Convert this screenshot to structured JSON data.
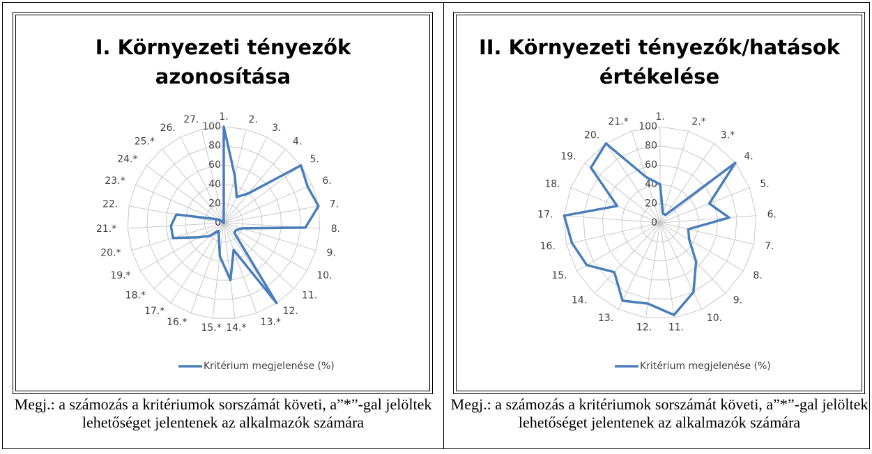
{
  "chart_data": [
    {
      "type": "radar",
      "title": [
        "I. Környezeti tényezők",
        "azonosítása"
      ],
      "categories": [
        "1.",
        "2.",
        "3.",
        "4.",
        "5.",
        "6.",
        "7.",
        "8.",
        "9.",
        "10.",
        "11.",
        "12.",
        "13.*",
        "14.*",
        "15.*",
        "16.*",
        "17.*",
        "18.*",
        "19.*",
        "20.*",
        "21.*",
        "22.",
        "23.*",
        "24.*",
        "25.*",
        "26.",
        "27."
      ],
      "series": [
        {
          "name": "Kritérium megjelenése (%)",
          "color": "#4a7ebb",
          "values": [
            100,
            50,
            30,
            40,
            100,
            95,
            100,
            85,
            20,
            15,
            15,
            100,
            30,
            60,
            35,
            15,
            10,
            20,
            30,
            55,
            55,
            50,
            10,
            5,
            0,
            0,
            0
          ]
        }
      ],
      "ylim": [
        0,
        100
      ],
      "yticks": [
        0,
        20,
        40,
        60,
        80,
        100
      ],
      "grid": true,
      "legend": "bottom"
    },
    {
      "type": "radar",
      "title": [
        "II. Környezeti tényezők/hatások",
        "értékelése"
      ],
      "categories": [
        "1.",
        "2.*",
        "3.*",
        "4.",
        "5.",
        "6.",
        "7.",
        "8.",
        "9.",
        "10.",
        "11.",
        "12.",
        "13.",
        "14.",
        "15.",
        "16.",
        "17.",
        "18.",
        "19.",
        "20.",
        "21.*"
      ],
      "series": [
        {
          "name": "Kritérium megjelenése (%)",
          "color": "#4a7ebb",
          "values": [
            40,
            10,
            10,
            100,
            55,
            72,
            30,
            35,
            55,
            80,
            97,
            85,
            90,
            70,
            88,
            94,
            100,
            48,
            92,
            100,
            50
          ]
        }
      ],
      "ylim": [
        0,
        100
      ],
      "yticks": [
        0,
        20,
        40,
        60,
        80,
        100
      ],
      "grid": true,
      "legend": "bottom"
    }
  ],
  "captions": [
    "Megj.: a számozás a kritériumok sorszámát követi, a”*”-gal jelöltek lehetőséget jelentenek az alkalmazók számára",
    "Megj.: a számozás a kritériumok sorszámát követi, a”*”-gal jelöltek lehetőséget jelentenek az alkalmazók számára"
  ]
}
